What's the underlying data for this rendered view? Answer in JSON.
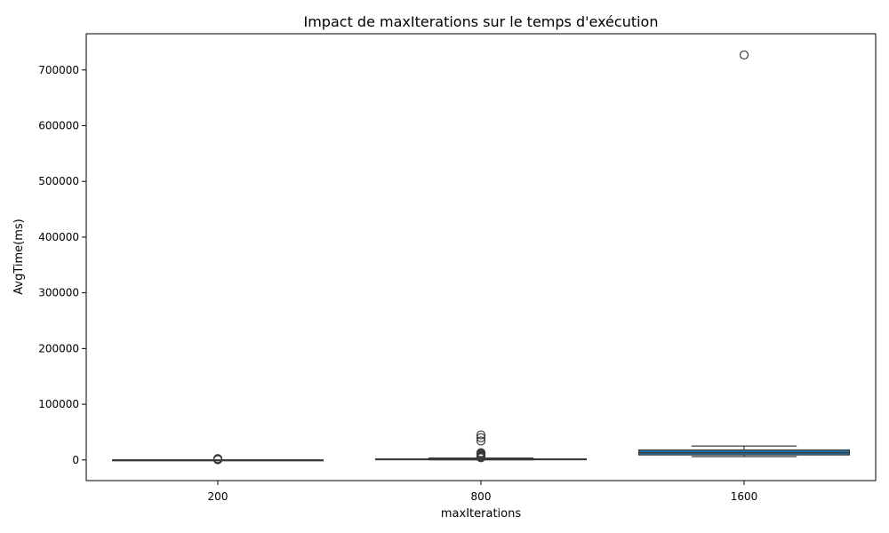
{
  "chart_data": {
    "type": "box",
    "title": "Impact de maxIterations sur le temps d'exécution",
    "xlabel": "maxIterations",
    "ylabel": "AvgTime(ms)",
    "categories": [
      "200",
      "800",
      "1600"
    ],
    "ylim": [
      -37000,
      765000
    ],
    "yticks": [
      0,
      100000,
      200000,
      300000,
      400000,
      500000,
      600000,
      700000
    ],
    "grid": false,
    "box_color": "#1f77b4",
    "line_color": "#3b3b3b",
    "boxes": [
      {
        "category": "200",
        "whisker_low": 0,
        "q1": 0,
        "median": 0,
        "q3": 100,
        "whisker_high": 300,
        "outliers": [
          500,
          1000,
          1500,
          2000,
          2500
        ]
      },
      {
        "category": "800",
        "whisker_low": 300,
        "q1": 900,
        "median": 1300,
        "q3": 2000,
        "whisker_high": 3500,
        "outliers": [
          4000,
          5000,
          6000,
          7000,
          8000,
          9000,
          10000,
          11000,
          12000,
          13000,
          34000,
          40000,
          45000
        ]
      },
      {
        "category": "1600",
        "whisker_low": 6000,
        "q1": 9000,
        "median": 13000,
        "q3": 18000,
        "whisker_high": 25000,
        "outliers": [
          727000
        ]
      }
    ]
  }
}
